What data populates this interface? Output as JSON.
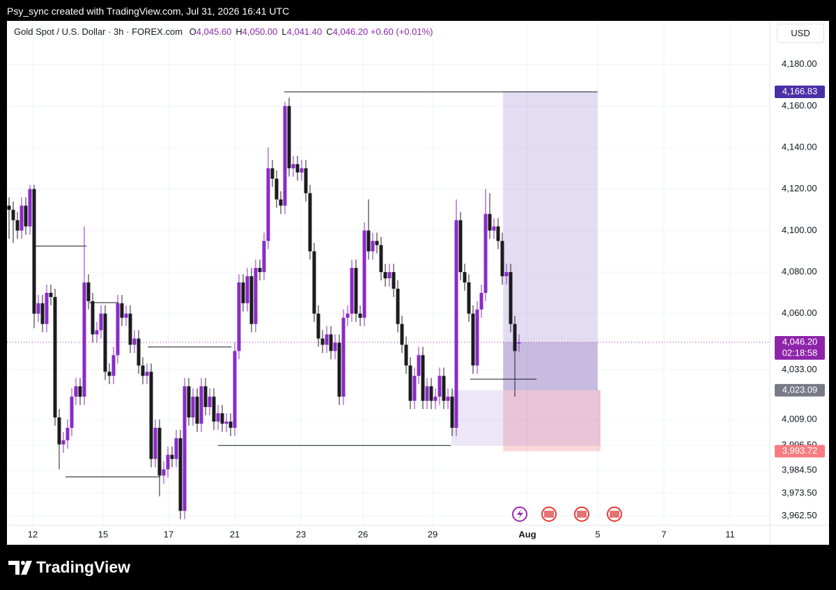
{
  "header": {
    "text": "Psy_sync created with TradingView.com, Jul 31, 2026 16:41 UTC"
  },
  "footer": {
    "brand": "TradingView"
  },
  "legend": {
    "symbol": "Gold Spot / U.S. Dollar · 3h · FOREX.com",
    "items": [
      {
        "key": "O",
        "value": "4,045.60"
      },
      {
        "key": "H",
        "value": "4,050.00"
      },
      {
        "key": "L",
        "value": "4,041.40"
      },
      {
        "key": "C",
        "value": "4,046.20"
      }
    ],
    "change": "+0.60 (+0.01%)",
    "currency": "USD"
  },
  "chart_data": {
    "type": "candlestick",
    "bull_color": "#8a2bc7",
    "bear_color": "#1c1c1f",
    "grid": true,
    "open": [
      4112,
      4110,
      4105,
      4100,
      4112,
      4102,
      4120,
      4060,
      4065,
      4055,
      4070,
      4068,
      4010,
      3997,
      3999,
      4005,
      4020,
      4025,
      4020,
      4075,
      4066,
      4050,
      4052,
      4060,
      4032,
      4030,
      4040,
      4065,
      4058,
      4060,
      4045,
      4048,
      4035,
      4030,
      4032,
      3990,
      4005,
      3982,
      3985,
      3992,
      3990,
      4000,
      3965,
      4025,
      4010,
      4020,
      4007,
      4025,
      4015,
      4020,
      4008,
      4012,
      4007,
      4008,
      4005,
      4042,
      4075,
      4065,
      4078,
      4055,
      4082,
      4080,
      4095,
      4130,
      4125,
      4115,
      4112,
      4160,
      4130,
      4132,
      4128,
      4130,
      4118,
      4090,
      4060,
      4048,
      4045,
      4050,
      4042,
      4046,
      4020,
      4058,
      4060,
      4082,
      4060,
      4058,
      4100,
      4090,
      4095,
      4093,
      4080,
      4077,
      4080,
      4072,
      4055,
      4045,
      4035,
      4018,
      4030,
      4040,
      4018,
      4025,
      4018,
      4020,
      4030,
      4018,
      4020,
      4005,
      4105,
      4080,
      4075,
      4060,
      4035,
      4062,
      4070,
      4108,
      4100,
      4102,
      4095,
      4078,
      4080,
      4055,
      4045.6
    ],
    "high": [
      4116,
      4114,
      4109,
      4116,
      4116,
      4122,
      4122,
      4069,
      4069,
      4074,
      4074,
      4072,
      4014,
      4003,
      4009,
      4024,
      4029,
      4029,
      4102,
      4079,
      4070,
      4056,
      4064,
      4064,
      4036,
      4044,
      4069,
      4069,
      4064,
      4064,
      4052,
      4052,
      4039,
      4036,
      4036,
      4009,
      4009,
      3989,
      3996,
      3996,
      4004,
      4004,
      4029,
      4029,
      4024,
      4024,
      4029,
      4029,
      4024,
      4024,
      4016,
      4016,
      4012,
      4012,
      4046,
      4079,
      4079,
      4082,
      4082,
      4086,
      4086,
      4099,
      4140,
      4134,
      4129,
      4119,
      4162,
      4164,
      4136,
      4136,
      4134,
      4134,
      4122,
      4094,
      4064,
      4052,
      4054,
      4054,
      4050,
      4050,
      4062,
      4064,
      4086,
      4086,
      4064,
      4104,
      4115,
      4099,
      4099,
      4097,
      4084,
      4084,
      4084,
      4076,
      4059,
      4049,
      4039,
      4034,
      4044,
      4044,
      4029,
      4029,
      4024,
      4034,
      4034,
      4024,
      4024,
      4115,
      4109,
      4084,
      4079,
      4064,
      4066,
      4074,
      4120,
      4118,
      4106,
      4106,
      4099,
      4084,
      4084,
      4059,
      4050
    ],
    "low": [
      4096,
      4094,
      4096,
      4096,
      4098,
      4098,
      4053,
      4056,
      4051,
      4051,
      4064,
      4006,
      3985,
      3993,
      3995,
      4001,
      4016,
      4016,
      4016,
      4062,
      4046,
      4046,
      4048,
      4028,
      4026,
      4026,
      4036,
      4054,
      4054,
      4041,
      4041,
      4031,
      4026,
      4026,
      3986,
      3986,
      3972,
      3978,
      3981,
      3986,
      3986,
      3961,
      3961,
      4006,
      4006,
      4003,
      4003,
      4011,
      4011,
      4004,
      4004,
      4003,
      4003,
      4001,
      4001,
      4038,
      4061,
      4061,
      4051,
      4051,
      4076,
      4076,
      4091,
      4121,
      4111,
      4108,
      4108,
      4126,
      4126,
      4124,
      4124,
      4114,
      4086,
      4056,
      4044,
      4041,
      4041,
      4038,
      4038,
      4016,
      4016,
      4054,
      4056,
      4056,
      4054,
      4054,
      4086,
      4086,
      4089,
      4076,
      4073,
      4073,
      4068,
      4051,
      4041,
      4031,
      4014,
      4014,
      4026,
      4014,
      4014,
      4014,
      4014,
      4016,
      4014,
      4014,
      4001,
      4001,
      4076,
      4071,
      4056,
      4031,
      4031,
      4058,
      4066,
      4096,
      4096,
      4091,
      4074,
      4074,
      4051,
      4020,
      4041.4
    ],
    "close": [
      4110,
      4105,
      4100,
      4112,
      4102,
      4120,
      4060,
      4065,
      4055,
      4070,
      4068,
      4010,
      3997,
      3999,
      4005,
      4020,
      4025,
      4020,
      4075,
      4066,
      4050,
      4052,
      4060,
      4032,
      4030,
      4040,
      4065,
      4058,
      4060,
      4045,
      4048,
      4035,
      4030,
      4032,
      3990,
      4005,
      3982,
      3985,
      3992,
      3990,
      4000,
      3965,
      4025,
      4010,
      4020,
      4007,
      4025,
      4015,
      4020,
      4008,
      4012,
      4007,
      4008,
      4005,
      4042,
      4075,
      4065,
      4078,
      4055,
      4082,
      4080,
      4095,
      4130,
      4125,
      4115,
      4112,
      4160,
      4130,
      4132,
      4128,
      4130,
      4118,
      4090,
      4060,
      4048,
      4045,
      4050,
      4042,
      4046,
      4020,
      4058,
      4060,
      4082,
      4060,
      4058,
      4100,
      4090,
      4095,
      4093,
      4080,
      4077,
      4080,
      4072,
      4055,
      4045,
      4035,
      4018,
      4030,
      4040,
      4018,
      4025,
      4018,
      4020,
      4030,
      4018,
      4020,
      4005,
      4105,
      4080,
      4075,
      4060,
      4035,
      4062,
      4070,
      4108,
      4100,
      4102,
      4095,
      4078,
      4080,
      4055,
      4042,
      4046.2
    ],
    "xlim": [
      -0.5,
      182
    ],
    "xticks": [
      {
        "value": 5.67,
        "label": "12"
      },
      {
        "value": 22.5,
        "label": "15"
      },
      {
        "value": 38.17,
        "label": "17"
      },
      {
        "value": 54,
        "label": "21"
      },
      {
        "value": 69.83,
        "label": "23"
      },
      {
        "value": 84.67,
        "label": "26"
      },
      {
        "value": 101.33,
        "label": "29"
      },
      {
        "value": 124,
        "label": "Aug"
      },
      {
        "value": 140.83,
        "label": "5"
      },
      {
        "value": 156.67,
        "label": "7"
      },
      {
        "value": 172.5,
        "label": "11"
      }
    ],
    "ylim": [
      3949,
      4201
    ],
    "yticks": [
      {
        "value": 4180,
        "label": "4,180.00"
      },
      {
        "value": 4160,
        "label": "4,160.00"
      },
      {
        "value": 4140,
        "label": "4,140.00"
      },
      {
        "value": 4120,
        "label": "4,120.00"
      },
      {
        "value": 4100,
        "label": "4,100.00"
      },
      {
        "value": 4080,
        "label": "4,080.00"
      },
      {
        "value": 4060,
        "label": "4,060.00"
      },
      {
        "value": 4033,
        "label": "4,033.00"
      },
      {
        "value": 4009,
        "label": "4,009.00"
      },
      {
        "value": 3996.5,
        "label": "3,996.50"
      },
      {
        "value": 3984.5,
        "label": "3,984.50"
      },
      {
        "value": 3973.5,
        "label": "3,973.50"
      },
      {
        "value": 3962.5,
        "label": "3,962.50"
      }
    ],
    "drawings": [
      {
        "y": 4092.5,
        "x1": 5.8,
        "x2": 18.5
      },
      {
        "y": 4065.3,
        "x1": 19.2,
        "x2": 26.2
      },
      {
        "y": 4043.9,
        "x1": 33.2,
        "x2": 53.2
      },
      {
        "y": 3996.5,
        "x1": 50,
        "x2": 105.7
      },
      {
        "y": 3981.4,
        "x1": 13.5,
        "x2": 36.2
      },
      {
        "y": 4166.83,
        "x1": 65.8,
        "x2": 140.8
      },
      {
        "y": 4028.4,
        "x1": 110.3,
        "x2": 126.2
      }
    ],
    "zones": [
      {
        "top": 4166.83,
        "bottom": 4023.09,
        "x1": 118.2,
        "x2": 140.8,
        "color": "rgba(149,117,205,0.25)"
      },
      {
        "top": 4046.2,
        "bottom": 4023.09,
        "x1": 118.2,
        "x2": 140.8,
        "color": "rgba(110,90,170,0.25)"
      },
      {
        "top": 4023.09,
        "bottom": 3993.72,
        "x1": 118.2,
        "x2": 141.5,
        "color": "rgba(242,54,69,0.2)"
      },
      {
        "top": 4023.09,
        "bottom": 3996.5,
        "x1": 105.8,
        "x2": 141.5,
        "color": "rgba(149,117,205,0.18)"
      }
    ],
    "price_labels": [
      {
        "value": 4166.83,
        "label": "4,166.83",
        "color": "#4b2fa6"
      },
      {
        "value": 4046.2,
        "label": "4,046.20",
        "color": "#8e24aa",
        "countdown": "02:18:58"
      },
      {
        "value": 4023.09,
        "label": "4,023.09",
        "color": "#787b86"
      },
      {
        "value": 3993.72,
        "label": "3,993.72",
        "color": "#f77c80"
      }
    ],
    "last_price_line": {
      "value": 4046.2,
      "color": "#9c27b0"
    }
  }
}
